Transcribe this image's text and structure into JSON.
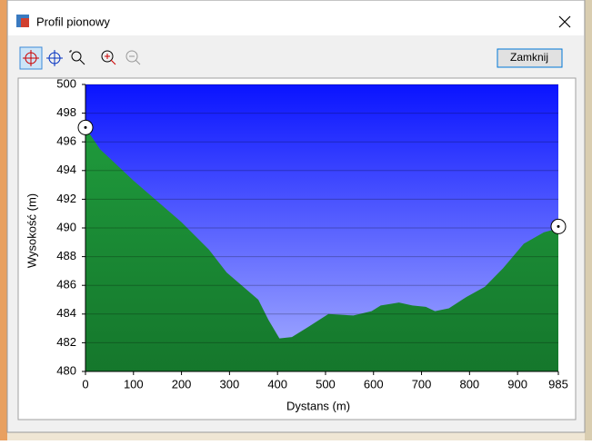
{
  "window": {
    "title": "Profil pionowy",
    "close_button": "Zamknij"
  },
  "chart_data": {
    "type": "area",
    "x_label": "Dystans   (m)",
    "y_label": "Wysokość (m)",
    "x": [
      0,
      30,
      100,
      200,
      257,
      294,
      360,
      381,
      404,
      430,
      464,
      506,
      558,
      596,
      615,
      653,
      681,
      709,
      728,
      757,
      794,
      832,
      870,
      913,
      955,
      977,
      985
    ],
    "values": [
      497.0,
      495.5,
      493.3,
      490.4,
      488.5,
      486.9,
      485.0,
      483.6,
      482.3,
      482.4,
      483.1,
      484.0,
      483.9,
      484.2,
      484.6,
      484.8,
      484.6,
      484.5,
      484.2,
      484.4,
      485.2,
      485.9,
      487.2,
      488.9,
      489.7,
      489.9,
      490.1
    ],
    "xlim": [
      0,
      985
    ],
    "xticks": [
      0,
      100,
      200,
      300,
      400,
      500,
      600,
      700,
      800,
      900,
      985
    ],
    "ylim": [
      480,
      500
    ],
    "yticks": [
      480,
      482,
      484,
      486,
      488,
      490,
      492,
      494,
      496,
      498,
      500
    ],
    "color": "#1f9a3c",
    "sky_color": "#0a14ff",
    "grid": true
  }
}
